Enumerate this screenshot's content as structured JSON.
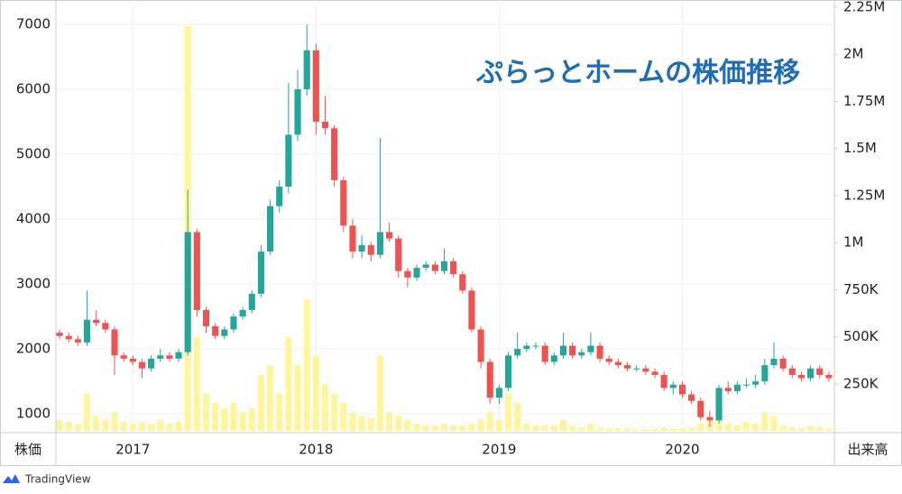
{
  "chart_data": {
    "type": "candlestick",
    "title": "ぷらっとホームの株価推移",
    "y_label": "株価",
    "y2_label": "出来高",
    "footer": "TradingView",
    "up_color": "#26a69a",
    "down_color": "#ef5350",
    "volume_color": "#fff59d",
    "title_color": "#1f6db5",
    "grid": true,
    "xlim": [
      2016.58,
      2020.83
    ],
    "xticks": [
      2017,
      2018,
      2019,
      2020
    ],
    "ylim": [
      710,
      7375
    ],
    "yticks": [
      1000,
      2000,
      3000,
      4000,
      5000,
      6000,
      7000
    ],
    "y2lim": [
      -8400,
      2288000
    ],
    "y2ticks": [
      {
        "value": 250000,
        "label": "250K"
      },
      {
        "value": 500000,
        "label": "500K"
      },
      {
        "value": 750000,
        "label": "750K"
      },
      {
        "value": 1000000,
        "label": "1M"
      },
      {
        "value": 1250000,
        "label": "1.25M"
      },
      {
        "value": 1500000,
        "label": "1.5M"
      },
      {
        "value": 1750000,
        "label": "1.75M"
      },
      {
        "value": 2000000,
        "label": "2M"
      },
      {
        "value": 2250000,
        "label": "2.25M"
      }
    ],
    "x": [
      2016.6,
      2016.65,
      2016.7,
      2016.75,
      2016.8,
      2016.85,
      2016.9,
      2016.95,
      2017,
      2017.05,
      2017.1,
      2017.15,
      2017.2,
      2017.25,
      2017.3,
      2017.35,
      2017.4,
      2017.45,
      2017.5,
      2017.55,
      2017.6,
      2017.65,
      2017.7,
      2017.75,
      2017.8,
      2017.85,
      2017.9,
      2017.95,
      2018,
      2018.05,
      2018.1,
      2018.15,
      2018.2,
      2018.25,
      2018.3,
      2018.35,
      2018.4,
      2018.45,
      2018.5,
      2018.55,
      2018.6,
      2018.65,
      2018.7,
      2018.75,
      2018.8,
      2018.85,
      2018.9,
      2018.95,
      2019,
      2019.05,
      2019.1,
      2019.15,
      2019.2,
      2019.25,
      2019.3,
      2019.35,
      2019.4,
      2019.45,
      2019.5,
      2019.55,
      2019.6,
      2019.65,
      2019.7,
      2019.75,
      2019.8,
      2019.85,
      2019.9,
      2019.95,
      2020,
      2020.05,
      2020.1,
      2020.15,
      2020.2,
      2020.25,
      2020.3,
      2020.35,
      2020.4,
      2020.45,
      2020.5,
      2020.55,
      2020.6,
      2020.65,
      2020.7,
      2020.75,
      2020.8
    ],
    "open": [
      2250,
      2200,
      2150,
      2100,
      2450,
      2400,
      2300,
      1900,
      1850,
      1800,
      1700,
      1850,
      1900,
      1850,
      1950,
      3800,
      2600,
      2350,
      2200,
      2300,
      2500,
      2600,
      2850,
      3500,
      4200,
      4500,
      5300,
      6000,
      6600,
      5500,
      5400,
      4600,
      3900,
      3500,
      3600,
      3450,
      3800,
      3700,
      3200,
      3100,
      3250,
      3300,
      3200,
      3350,
      3150,
      2900,
      2300,
      1800,
      1250,
      1400,
      1900,
      2000,
      2050,
      2050,
      1800,
      1900,
      2050,
      1900,
      1950,
      2050,
      1850,
      1800,
      1750,
      1700,
      1700,
      1650,
      1600,
      1400,
      1450,
      1300,
      1200,
      950,
      900,
      1400,
      1350,
      1450,
      1450,
      1500,
      1750,
      1850,
      1700,
      1600,
      1550,
      1700,
      1600
    ],
    "high": [
      2300,
      2250,
      2200,
      2900,
      2600,
      2450,
      2350,
      1950,
      1900,
      1850,
      1900,
      2000,
      1950,
      2000,
      4450,
      3850,
      2650,
      2400,
      2350,
      2550,
      2650,
      2900,
      3600,
      4300,
      4600,
      6100,
      6300,
      7000,
      6700,
      5900,
      5450,
      4650,
      4000,
      3750,
      3650,
      5250,
      3950,
      3750,
      3250,
      3300,
      3350,
      3350,
      3550,
      3400,
      3200,
      2950,
      2350,
      1850,
      1450,
      1950,
      2250,
      2100,
      2100,
      2100,
      1950,
      2250,
      2100,
      2000,
      2250,
      2100,
      1900,
      1850,
      1800,
      1750,
      1750,
      1700,
      1650,
      1500,
      1500,
      1350,
      1250,
      1050,
      1450,
      1500,
      1500,
      1550,
      1600,
      1850,
      2100,
      1900,
      1750,
      1650,
      1750,
      1750,
      1650
    ],
    "low": [
      2150,
      2100,
      2050,
      2050,
      2350,
      2250,
      1600,
      1800,
      1750,
      1550,
      1650,
      1800,
      1800,
      1800,
      1900,
      2500,
      2250,
      2150,
      2150,
      2250,
      2450,
      2550,
      2800,
      3450,
      4100,
      4400,
      5200,
      5900,
      5300,
      5300,
      4500,
      3800,
      3400,
      3400,
      3350,
      3400,
      3650,
      3100,
      2950,
      3050,
      3200,
      3150,
      3150,
      3100,
      2850,
      2250,
      1700,
      1150,
      1150,
      1350,
      1850,
      1950,
      2000,
      1750,
      1750,
      1850,
      1850,
      1850,
      1900,
      1800,
      1750,
      1700,
      1650,
      1650,
      1600,
      1550,
      1350,
      1300,
      1250,
      1150,
      900,
      800,
      850,
      1300,
      1300,
      1400,
      1400,
      1450,
      1700,
      1650,
      1550,
      1500,
      1500,
      1550,
      1500
    ],
    "close": [
      2200,
      2150,
      2100,
      2450,
      2400,
      2300,
      1900,
      1850,
      1800,
      1700,
      1850,
      1900,
      1850,
      1950,
      3800,
      2600,
      2350,
      2200,
      2300,
      2500,
      2600,
      2850,
      3500,
      4200,
      4500,
      5300,
      6000,
      6600,
      5500,
      5400,
      4600,
      3900,
      3500,
      3600,
      3450,
      3800,
      3700,
      3200,
      3100,
      3250,
      3300,
      3200,
      3350,
      3150,
      2900,
      2300,
      1800,
      1250,
      1400,
      1900,
      2000,
      2050,
      2050,
      1800,
      1900,
      2050,
      1900,
      1950,
      2050,
      1850,
      1800,
      1750,
      1700,
      1700,
      1650,
      1600,
      1400,
      1450,
      1300,
      1200,
      950,
      900,
      1400,
      1350,
      1450,
      1450,
      1500,
      1750,
      1850,
      1700,
      1600,
      1550,
      1700,
      1600,
      1550
    ],
    "volume": [
      60000,
      50000,
      40000,
      200000,
      80000,
      60000,
      100000,
      50000,
      40000,
      50000,
      40000,
      60000,
      40000,
      50000,
      2150000,
      500000,
      200000,
      150000,
      120000,
      150000,
      100000,
      120000,
      300000,
      350000,
      200000,
      500000,
      350000,
      700000,
      400000,
      250000,
      200000,
      150000,
      100000,
      80000,
      70000,
      400000,
      100000,
      80000,
      60000,
      40000,
      30000,
      30000,
      40000,
      30000,
      30000,
      40000,
      60000,
      100000,
      60000,
      200000,
      150000,
      40000,
      30000,
      30000,
      30000,
      60000,
      30000,
      20000,
      40000,
      20000,
      15000,
      15000,
      15000,
      10000,
      10000,
      10000,
      20000,
      15000,
      15000,
      20000,
      40000,
      60000,
      100000,
      40000,
      30000,
      50000,
      40000,
      100000,
      80000,
      30000,
      20000,
      15000,
      30000,
      20000,
      15000
    ]
  }
}
